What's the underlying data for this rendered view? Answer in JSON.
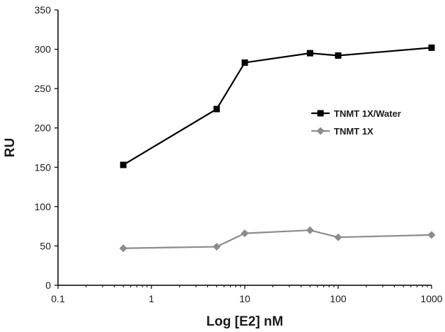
{
  "chart_data": {
    "type": "line",
    "title": "",
    "xlabel": "Log [E2] nM",
    "ylabel": "RU",
    "xscale": "log",
    "xlim": [
      0.1,
      1000
    ],
    "ylim": [
      0,
      350
    ],
    "x_ticks": [
      0.1,
      1,
      10,
      100,
      1000
    ],
    "x_tick_labels": [
      "0.1",
      "1",
      "10",
      "100",
      "1000"
    ],
    "y_ticks": [
      0,
      50,
      100,
      150,
      200,
      250,
      300,
      350
    ],
    "y_tick_labels": [
      "0",
      "50",
      "100",
      "150",
      "200",
      "250",
      "300",
      "350"
    ],
    "grid": false,
    "legend_position": "right",
    "series": [
      {
        "name": "TNMT 1X/Water",
        "color": "#000000",
        "marker": "square",
        "x": [
          0.5,
          5,
          10,
          50,
          100,
          1000
        ],
        "y": [
          153,
          224,
          283,
          295,
          292,
          302
        ]
      },
      {
        "name": "TNMT 1X",
        "color": "#8c8c8c",
        "marker": "diamond",
        "x": [
          0.5,
          5,
          10,
          50,
          100,
          1000
        ],
        "y": [
          47,
          49,
          66,
          70,
          61,
          64
        ]
      }
    ]
  }
}
